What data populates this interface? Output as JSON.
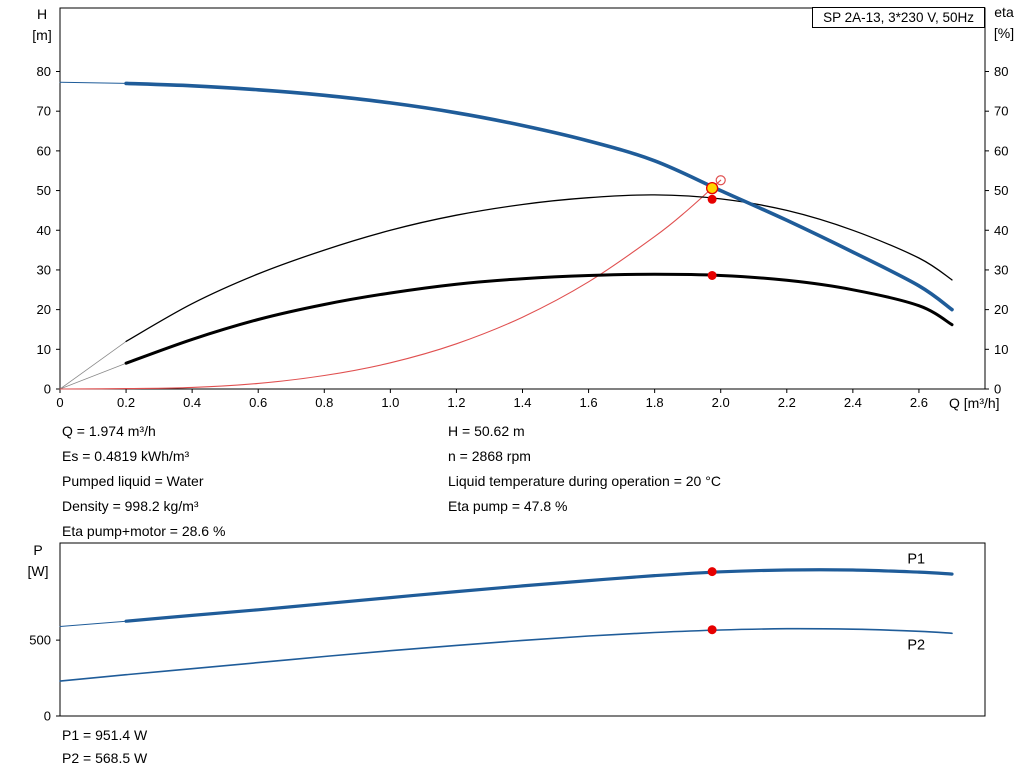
{
  "axes_labels": {
    "h_line1": "H",
    "h_line2": "[m]",
    "eta_line1": "eta",
    "eta_line2": "[%]",
    "q_label": "Q [m³/h]",
    "p_line1": "P",
    "p_line2": "[W]"
  },
  "info": {
    "left": [
      "Q = 1.974 m³/h",
      "Es = 0.4819 kWh/m³",
      "Pumped liquid = Water",
      "Density = 998.2 kg/m³",
      "Eta pump+motor = 28.6 %"
    ],
    "right": [
      "H = 50.62 m",
      "n = 2868 rpm",
      "Liquid temperature during operation = 20 °C",
      "Eta pump = 47.8 %"
    ]
  },
  "power_values": [
    "P1 = 951.4 W",
    "P2 = 568.5 W"
  ],
  "colors": {
    "curve_blue": "#1f5c99",
    "curve_black": "#000000",
    "system_red": "#e05050",
    "marker_red": "#e60000",
    "duty_yellow": "#ffd500",
    "leadin_gray": "#8a8a8a"
  },
  "chart_data": [
    {
      "type": "line",
      "title": "SP 2A-13, 3*230 V, 50Hz",
      "xlabel": "Q [m³/h]",
      "ylabel_left": "H [m]",
      "ylabel_right": "eta [%]",
      "xlim": [
        0,
        2.8
      ],
      "ylim": [
        0,
        96
      ],
      "grid": false,
      "xticks": {
        "values": [
          0,
          0.2,
          0.4,
          0.6,
          0.8,
          1.0,
          1.2,
          1.4,
          1.6,
          1.8,
          2.0,
          2.2,
          2.4,
          2.6
        ],
        "labels": [
          "0",
          "0.2",
          "0.4",
          "0.6",
          "0.8",
          "1.0",
          "1.2",
          "1.4",
          "1.6",
          "1.8",
          "2.0",
          "2.2",
          "2.4",
          "2.6"
        ]
      },
      "yticks_left": {
        "values": [
          0,
          10,
          20,
          30,
          40,
          50,
          60,
          70,
          80
        ],
        "labels": [
          "0",
          "10",
          "20",
          "30",
          "40",
          "50",
          "60",
          "70",
          "80"
        ]
      },
      "yticks_right": {
        "values": [
          0,
          10,
          20,
          30,
          40,
          50,
          60,
          70,
          80
        ],
        "labels": [
          "0",
          "10",
          "20",
          "30",
          "40",
          "50",
          "60",
          "70",
          "80"
        ]
      },
      "series": [
        {
          "name": "hq-leadin",
          "color": "#1f5c99",
          "width": 1,
          "x": [
            0,
            0.2
          ],
          "y": [
            77.3,
            77.0
          ]
        },
        {
          "name": "eta-pump-leadin",
          "color": "#8a8a8a",
          "width": 0.8,
          "x": [
            0,
            0.2
          ],
          "y": [
            0,
            12.0
          ]
        },
        {
          "name": "eta-pump-motor-leadin",
          "color": "#8a8a8a",
          "width": 0.8,
          "x": [
            0,
            0.2
          ],
          "y": [
            0,
            6.5
          ]
        },
        {
          "name": "system-curve",
          "color": "#e05050",
          "width": 1.1,
          "x": [
            0,
            0.2,
            0.4,
            0.6,
            0.8,
            1.0,
            1.2,
            1.4,
            1.6,
            1.8,
            1.9,
            2.0
          ],
          "y": [
            0,
            0.1,
            0.4,
            1.4,
            3.4,
            6.6,
            11.4,
            18.1,
            27.0,
            38.4,
            45.1,
            52.6
          ]
        },
        {
          "name": "eta-pump",
          "color": "#000000",
          "width": 1.3,
          "x": [
            0.2,
            0.4,
            0.6,
            0.8,
            1.0,
            1.2,
            1.4,
            1.6,
            1.8,
            2.0,
            2.2,
            2.4,
            2.6,
            2.7
          ],
          "y": [
            12.0,
            21.5,
            29.0,
            35.0,
            40.0,
            43.8,
            46.5,
            48.2,
            48.9,
            47.9,
            45.0,
            40.0,
            33.0,
            27.5
          ]
        },
        {
          "name": "eta-pump-motor",
          "color": "#000000",
          "width": 3,
          "x": [
            0.2,
            0.4,
            0.6,
            0.8,
            1.0,
            1.2,
            1.4,
            1.6,
            1.8,
            2.0,
            2.2,
            2.4,
            2.6,
            2.7
          ],
          "y": [
            6.5,
            12.5,
            17.5,
            21.3,
            24.2,
            26.4,
            27.8,
            28.6,
            28.9,
            28.6,
            27.4,
            25.0,
            21.0,
            16.2
          ]
        },
        {
          "name": "hq-curve",
          "color": "#1f5c99",
          "width": 3.6,
          "x": [
            0.2,
            0.4,
            0.6,
            0.8,
            1.0,
            1.2,
            1.4,
            1.6,
            1.8,
            2.0,
            2.2,
            2.4,
            2.6,
            2.7
          ],
          "y": [
            77.0,
            76.4,
            75.4,
            74.0,
            72.1,
            69.6,
            66.4,
            62.5,
            57.5,
            50.0,
            42.5,
            34.5,
            26.0,
            20.0
          ]
        }
      ],
      "markers": [
        {
          "name": "system-curve-end",
          "x": 2.0,
          "y": 52.6,
          "r": 4.5,
          "fill": "none",
          "stroke": "#e05050",
          "stroke_width": 1.2
        },
        {
          "name": "eta-pump-point",
          "x": 1.974,
          "y": 47.8,
          "r": 4.5,
          "fill": "#e60000"
        },
        {
          "name": "eta-pump-motor-point",
          "x": 1.974,
          "y": 28.6,
          "r": 4.5,
          "fill": "#e60000"
        },
        {
          "name": "duty-point-marker",
          "x": 1.974,
          "y": 50.62,
          "r": 5.5,
          "fill": "#ffd500",
          "stroke": "#e60000",
          "stroke_width": 1.3
        }
      ],
      "duty_point": {
        "Q": "1.974 m³/h",
        "H": "50.62 m"
      }
    },
    {
      "type": "line",
      "title": "",
      "xlabel": "Q [m³/h]",
      "ylabel_left": "P [W]",
      "xlim": [
        0,
        2.8
      ],
      "ylim": [
        0,
        1140
      ],
      "grid": false,
      "yticks_left": {
        "values": [
          0,
          500
        ],
        "labels": [
          "0",
          "500"
        ]
      },
      "series": [
        {
          "name": "p1-leadin",
          "color": "#1f5c99",
          "width": 1,
          "x": [
            0,
            0.2
          ],
          "y": [
            590,
            625
          ]
        },
        {
          "name": "p1-curve",
          "color": "#1f5c99",
          "width": 3.2,
          "x": [
            0.2,
            0.4,
            0.6,
            0.8,
            1.0,
            1.2,
            1.4,
            1.6,
            1.8,
            2.0,
            2.2,
            2.4,
            2.6,
            2.7
          ],
          "y": [
            625,
            663,
            700,
            740,
            780,
            820,
            857,
            892,
            925,
            950,
            962,
            962,
            948,
            935
          ]
        },
        {
          "name": "p2-curve",
          "color": "#1f5c99",
          "width": 1.6,
          "x": [
            0,
            0.2,
            0.4,
            0.6,
            0.8,
            1.0,
            1.2,
            1.4,
            1.6,
            1.8,
            2.0,
            2.2,
            2.4,
            2.6,
            2.7
          ],
          "y": [
            230,
            272,
            312,
            352,
            392,
            430,
            465,
            498,
            527,
            550,
            567,
            575,
            572,
            558,
            545
          ]
        }
      ],
      "markers": [
        {
          "name": "p1-point",
          "x": 1.974,
          "y": 951.4,
          "r": 4.5,
          "fill": "#e60000"
        },
        {
          "name": "p2-point",
          "x": 1.974,
          "y": 568.5,
          "r": 4.5,
          "fill": "#e60000"
        }
      ],
      "labels": [
        {
          "name": "p1-curve-label",
          "text": "P1",
          "x": 2.565,
          "y": 1005,
          "color": "#1f5c99"
        },
        {
          "name": "p2-curve-label",
          "text": "P2",
          "x": 2.565,
          "y": 438,
          "color": "#1f5c99"
        }
      ]
    }
  ]
}
